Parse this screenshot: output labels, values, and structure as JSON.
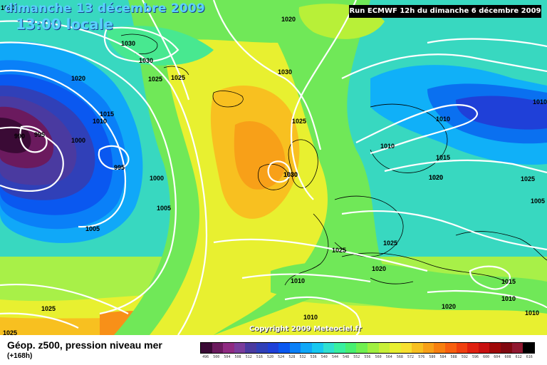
{
  "header": {
    "date": "dimanche 13 décembre 2009",
    "time": "13:00 locale",
    "run": "Run ECMWF 12h du dimanche 6 décembre 2009"
  },
  "footer": {
    "title": "Géop. z500, pression niveau mer",
    "subtitle": "(+168h)",
    "copyright": "Copyright 2009 Meteociel.fr"
  },
  "legend": {
    "ticks": [
      "496",
      "500",
      "504",
      "508",
      "512",
      "516",
      "520",
      "524",
      "528",
      "532",
      "536",
      "540",
      "544",
      "548",
      "552",
      "556",
      "560",
      "564",
      "568",
      "572",
      "576",
      "580",
      "584",
      "588",
      "592",
      "596",
      "600",
      "604",
      "608",
      "612",
      "616"
    ],
    "colors": [
      "#3a0a35",
      "#6b1a5e",
      "#8f2a82",
      "#7a3c9c",
      "#4a3aa0",
      "#3040b8",
      "#1f40d8",
      "#0a58f0",
      "#0a80f8",
      "#10a8f8",
      "#18c8f0",
      "#30e0d0",
      "#38f0a0",
      "#48f070",
      "#70f050",
      "#a0f040",
      "#c8f038",
      "#e8f030",
      "#f8e030",
      "#f8c020",
      "#f8a018",
      "#f88010",
      "#f86010",
      "#f04010",
      "#e02010",
      "#c81010",
      "#a00808",
      "#800810",
      "#901830",
      "#000000"
    ]
  },
  "pressure_labels": [
    "1020",
    "1030",
    "1030",
    "1025",
    "1025",
    "1020",
    "1015",
    "1010",
    "990",
    "995",
    "995",
    "1000",
    "1000",
    "1005",
    "1005",
    "1025",
    "1025",
    "1030",
    "1025",
    "1030",
    "1025",
    "1020",
    "1015",
    "1010",
    "1010",
    "1010",
    "1010",
    "1020",
    "1025",
    "1025",
    "1020",
    "1015",
    "1010",
    "1010",
    "1010",
    "1010",
    "1005",
    "1020",
    "1030"
  ],
  "colors": {
    "title": "#5ad0ff",
    "isobar": "#ffffff"
  }
}
